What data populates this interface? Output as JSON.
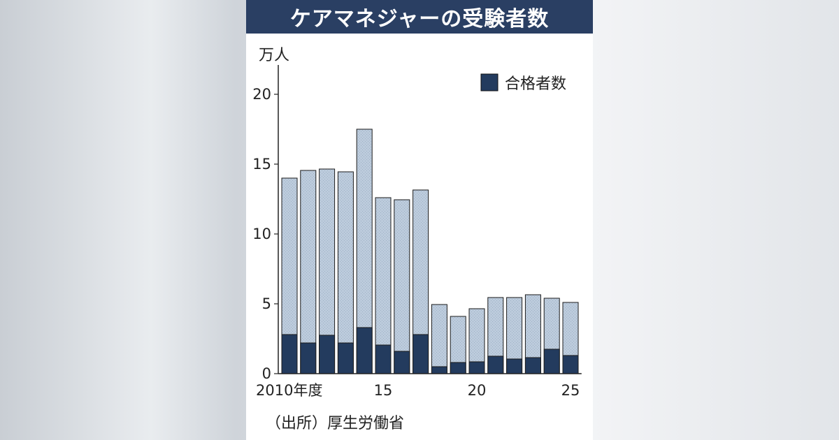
{
  "title": "ケアマネジャーの受験者数",
  "source": "（出所）厚生労働省",
  "colors": {
    "title_bg": "#2a3f63",
    "examinees": "#b9c9da",
    "passed": "#233b5e"
  },
  "chart_data": {
    "type": "bar",
    "stacked": true,
    "unit_label": "万人",
    "categories": [
      "2010",
      "2011",
      "2012",
      "2013",
      "2014",
      "2015",
      "2016",
      "2017",
      "2018",
      "2019",
      "2020",
      "2021",
      "2022",
      "2023",
      "2024",
      "2025"
    ],
    "x_tick_labels": [
      {
        "category": "2010",
        "label": "2010年度"
      },
      {
        "category": "2015",
        "label": "15"
      },
      {
        "category": "2020",
        "label": "20"
      },
      {
        "category": "2025",
        "label": "25"
      }
    ],
    "series": [
      {
        "name": "合格者数",
        "role": "passed",
        "values": [
          2.8,
          2.2,
          2.75,
          2.2,
          3.3,
          2.05,
          1.6,
          2.8,
          0.5,
          0.8,
          0.85,
          1.25,
          1.05,
          1.15,
          1.75,
          1.3
        ]
      },
      {
        "role": "examinees_total",
        "values": [
          14.0,
          14.55,
          14.65,
          14.45,
          17.5,
          12.6,
          12.45,
          13.15,
          4.95,
          4.1,
          4.65,
          5.45,
          5.45,
          5.65,
          5.4,
          5.1
        ]
      }
    ],
    "ylim": [
      0,
      22
    ],
    "yticks": [
      0,
      5,
      10,
      15,
      20
    ],
    "legend": {
      "position": "top-right",
      "label": "合格者数"
    },
    "grid": false
  }
}
